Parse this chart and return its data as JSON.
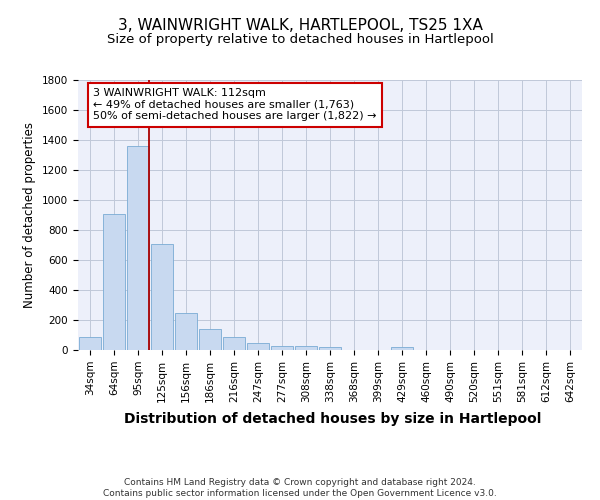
{
  "title": "3, WAINWRIGHT WALK, HARTLEPOOL, TS25 1XA",
  "subtitle": "Size of property relative to detached houses in Hartlepool",
  "xlabel": "Distribution of detached houses by size in Hartlepool",
  "ylabel": "Number of detached properties",
  "categories": [
    "34sqm",
    "64sqm",
    "95sqm",
    "125sqm",
    "156sqm",
    "186sqm",
    "216sqm",
    "247sqm",
    "277sqm",
    "308sqm",
    "338sqm",
    "368sqm",
    "399sqm",
    "429sqm",
    "460sqm",
    "490sqm",
    "520sqm",
    "551sqm",
    "581sqm",
    "612sqm",
    "642sqm"
  ],
  "values": [
    85,
    905,
    1360,
    710,
    245,
    140,
    85,
    50,
    30,
    25,
    18,
    0,
    0,
    20,
    0,
    0,
    0,
    0,
    0,
    0,
    0
  ],
  "bar_color": "#c8d9f0",
  "bar_edge_color": "#7aabd4",
  "vline_color": "#aa0000",
  "annotation_text": "3 WAINWRIGHT WALK: 112sqm\n← 49% of detached houses are smaller (1,763)\n50% of semi-detached houses are larger (1,822) →",
  "annotation_box_facecolor": "#ffffff",
  "annotation_box_edgecolor": "#cc0000",
  "ylim": [
    0,
    1800
  ],
  "yticks": [
    0,
    200,
    400,
    600,
    800,
    1000,
    1200,
    1400,
    1600,
    1800
  ],
  "grid_color": "#c0c8d8",
  "bg_color": "#edf0fa",
  "footer_text": "Contains HM Land Registry data © Crown copyright and database right 2024.\nContains public sector information licensed under the Open Government Licence v3.0.",
  "title_fontsize": 11,
  "subtitle_fontsize": 9.5,
  "ylabel_fontsize": 8.5,
  "xlabel_fontsize": 10,
  "tick_fontsize": 7.5,
  "annot_fontsize": 8,
  "footer_fontsize": 6.5
}
